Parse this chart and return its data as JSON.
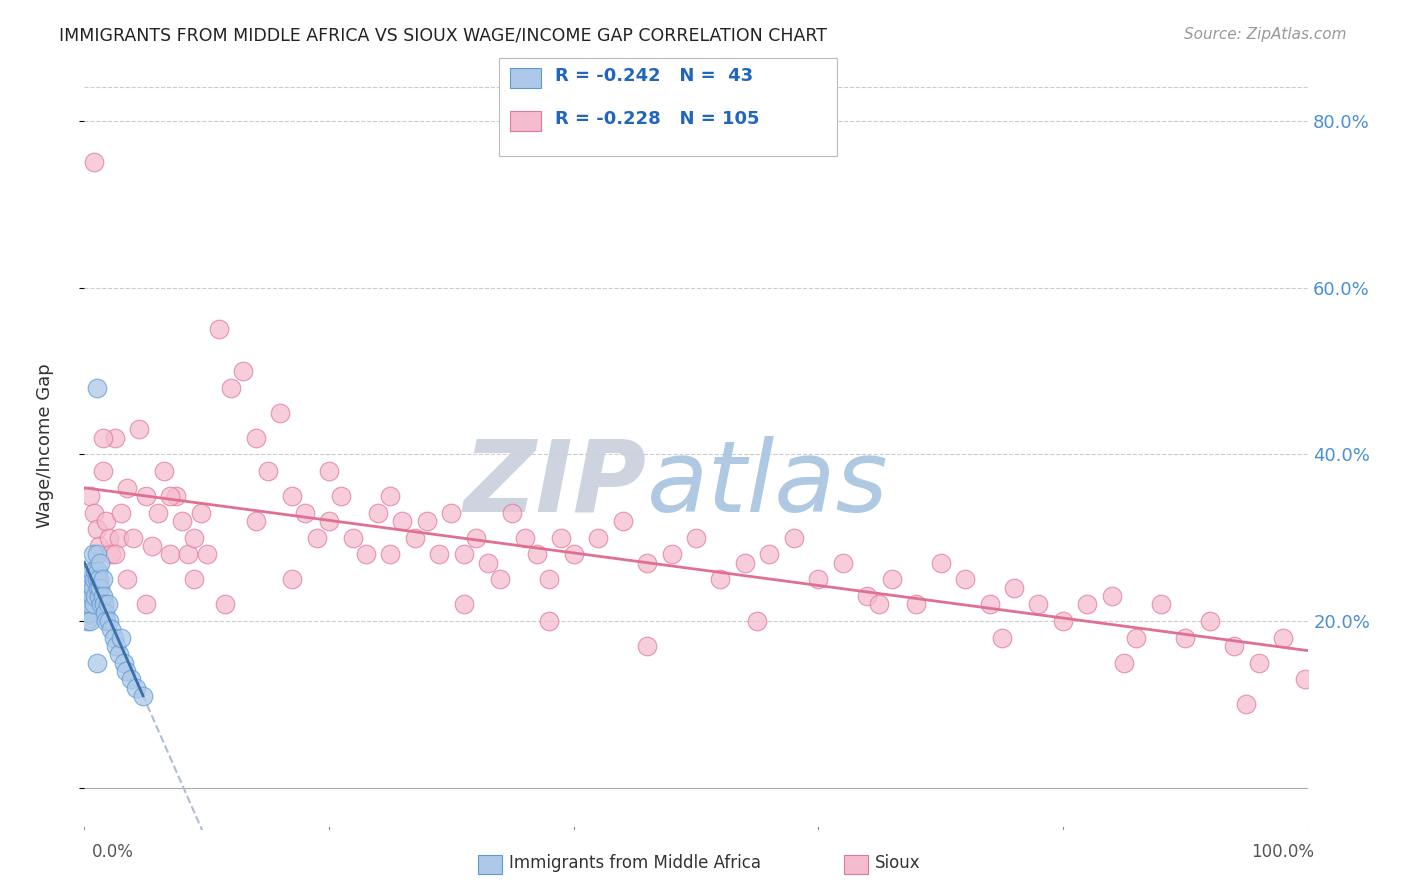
{
  "title": "IMMIGRANTS FROM MIDDLE AFRICA VS SIOUX WAGE/INCOME GAP CORRELATION CHART",
  "source": "Source: ZipAtlas.com",
  "ylabel": "Wage/Income Gap",
  "legend_blue_label": "Immigrants from Middle Africa",
  "legend_pink_label": "Sioux",
  "R_blue": -0.242,
  "N_blue": 43,
  "R_pink": -0.228,
  "N_pink": 105,
  "blue_color": "#adc8e8",
  "blue_edge_color": "#5b9bd5",
  "blue_line_color": "#3a6fa8",
  "pink_color": "#f5bcd0",
  "pink_edge_color": "#e07898",
  "pink_line_color": "#e07090",
  "dashed_line_color": "#b0bcd4",
  "watermark_color": "#d0dae8",
  "background_color": "#ffffff",
  "grid_color": "#cccccc",
  "ytick_color": "#4a8fd4",
  "xtick_color": "#555555",
  "blue_scatter_x": [
    0.002,
    0.003,
    0.004,
    0.004,
    0.005,
    0.005,
    0.005,
    0.006,
    0.006,
    0.007,
    0.007,
    0.008,
    0.008,
    0.009,
    0.009,
    0.01,
    0.01,
    0.011,
    0.011,
    0.012,
    0.012,
    0.013,
    0.013,
    0.014,
    0.015,
    0.015,
    0.016,
    0.017,
    0.018,
    0.019,
    0.02,
    0.022,
    0.024,
    0.026,
    0.028,
    0.03,
    0.032,
    0.034,
    0.038,
    0.042,
    0.048,
    0.01,
    0.01
  ],
  "blue_scatter_y": [
    0.2,
    0.22,
    0.21,
    0.25,
    0.24,
    0.22,
    0.2,
    0.26,
    0.23,
    0.28,
    0.24,
    0.25,
    0.22,
    0.26,
    0.23,
    0.28,
    0.25,
    0.26,
    0.24,
    0.25,
    0.23,
    0.27,
    0.24,
    0.22,
    0.25,
    0.23,
    0.22,
    0.21,
    0.2,
    0.22,
    0.2,
    0.19,
    0.18,
    0.17,
    0.16,
    0.18,
    0.15,
    0.14,
    0.13,
    0.12,
    0.11,
    0.48,
    0.15
  ],
  "pink_scatter_x": [
    0.005,
    0.008,
    0.01,
    0.012,
    0.015,
    0.018,
    0.02,
    0.022,
    0.025,
    0.028,
    0.03,
    0.035,
    0.04,
    0.045,
    0.05,
    0.055,
    0.06,
    0.065,
    0.07,
    0.075,
    0.08,
    0.085,
    0.09,
    0.095,
    0.1,
    0.11,
    0.12,
    0.13,
    0.14,
    0.15,
    0.16,
    0.17,
    0.18,
    0.19,
    0.2,
    0.21,
    0.22,
    0.23,
    0.24,
    0.25,
    0.26,
    0.27,
    0.28,
    0.29,
    0.3,
    0.31,
    0.32,
    0.33,
    0.34,
    0.35,
    0.36,
    0.37,
    0.38,
    0.39,
    0.4,
    0.42,
    0.44,
    0.46,
    0.48,
    0.5,
    0.52,
    0.54,
    0.56,
    0.58,
    0.6,
    0.62,
    0.64,
    0.66,
    0.68,
    0.7,
    0.72,
    0.74,
    0.76,
    0.78,
    0.8,
    0.82,
    0.84,
    0.86,
    0.88,
    0.9,
    0.92,
    0.94,
    0.96,
    0.98,
    0.998,
    0.015,
    0.025,
    0.035,
    0.05,
    0.07,
    0.09,
    0.115,
    0.14,
    0.17,
    0.2,
    0.25,
    0.31,
    0.38,
    0.46,
    0.55,
    0.65,
    0.75,
    0.85,
    0.95,
    0.008
  ],
  "pink_scatter_y": [
    0.35,
    0.33,
    0.31,
    0.29,
    0.38,
    0.32,
    0.3,
    0.28,
    0.42,
    0.3,
    0.33,
    0.36,
    0.3,
    0.43,
    0.35,
    0.29,
    0.33,
    0.38,
    0.28,
    0.35,
    0.32,
    0.28,
    0.3,
    0.33,
    0.28,
    0.55,
    0.48,
    0.5,
    0.42,
    0.38,
    0.45,
    0.35,
    0.33,
    0.3,
    0.38,
    0.35,
    0.3,
    0.28,
    0.33,
    0.35,
    0.32,
    0.3,
    0.32,
    0.28,
    0.33,
    0.28,
    0.3,
    0.27,
    0.25,
    0.33,
    0.3,
    0.28,
    0.25,
    0.3,
    0.28,
    0.3,
    0.32,
    0.27,
    0.28,
    0.3,
    0.25,
    0.27,
    0.28,
    0.3,
    0.25,
    0.27,
    0.23,
    0.25,
    0.22,
    0.27,
    0.25,
    0.22,
    0.24,
    0.22,
    0.2,
    0.22,
    0.23,
    0.18,
    0.22,
    0.18,
    0.2,
    0.17,
    0.15,
    0.18,
    0.13,
    0.42,
    0.28,
    0.25,
    0.22,
    0.35,
    0.25,
    0.22,
    0.32,
    0.25,
    0.32,
    0.28,
    0.22,
    0.2,
    0.17,
    0.2,
    0.22,
    0.18,
    0.15,
    0.1,
    0.75
  ]
}
